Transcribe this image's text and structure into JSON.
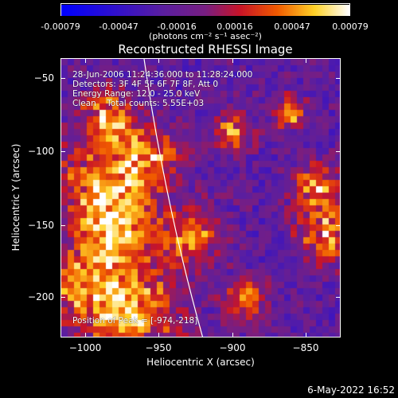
{
  "colorbar": {
    "ticks": [
      "-0.00079",
      "-0.00047",
      "-0.00016",
      "0.00016",
      "0.00047",
      "0.00079"
    ],
    "unit_label": "(photons cm⁻² s⁻¹ asec⁻²)"
  },
  "title": "Reconstructed RHESSI Image",
  "info": {
    "time_range": "28-Jun-2006 11:24:36.000 to 11:28:24.000",
    "detectors": "Detectors: 3F 4F 5F 6F 7F 8F, Att 0",
    "energy": "Energy Range: 12.0 - 25.0 keV",
    "clean": "Clean    Total counts: 5.55E+03",
    "peak": "Position of Peak = [-974,-218]"
  },
  "chart_data": {
    "type": "heatmap",
    "title": "Reconstructed RHESSI Image",
    "xlabel": "Heliocentric X (arcsec)",
    "ylabel": "Heliocentric Y (arcsec)",
    "xlim": [
      -1015,
      -825
    ],
    "ylim": [
      -230,
      -40
    ],
    "x_ticks": [
      "−1000",
      "−950",
      "−900",
      "−850"
    ],
    "y_ticks": [
      "−50",
      "−100",
      "−150",
      "−200"
    ],
    "color_range": [
      -0.00079,
      0.00079
    ],
    "peak_position": [
      -974,
      -218
    ]
  },
  "timestamp": "6-May-2022 16:52"
}
